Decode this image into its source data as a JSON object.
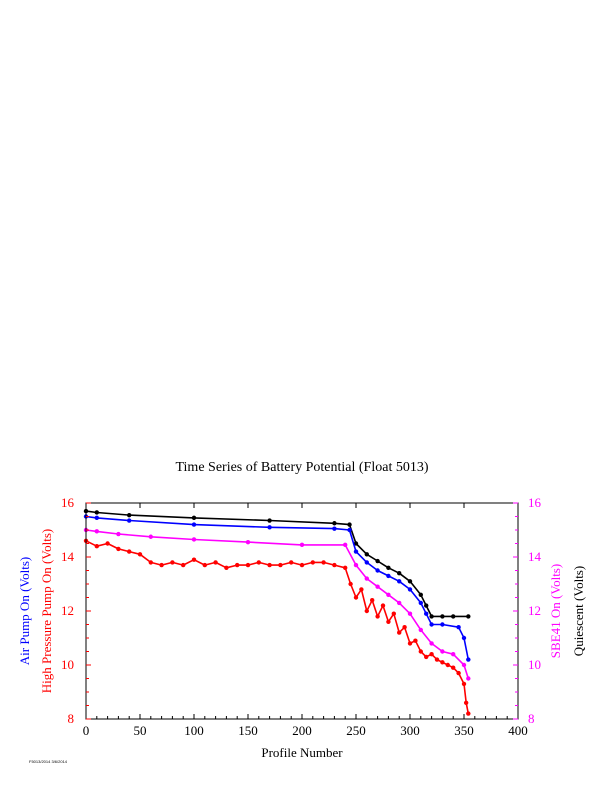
{
  "chart_data": {
    "type": "line",
    "title": "Time Series of Battery Potential (Float 5013)",
    "xlabel": "Profile Number",
    "ylabel_left_outer": "Air Pump On (Volts)",
    "ylabel_left_inner": "High Pressure Pump On (Volts)",
    "ylabel_right_inner": "SBE41 On (Volts)",
    "ylabel_right_outer": "Quiescent (Volts)",
    "xlim": [
      0,
      400
    ],
    "ylim": [
      8,
      16
    ],
    "x_ticks": [
      "0",
      "50",
      "100",
      "150",
      "200",
      "250",
      "300",
      "350",
      "400"
    ],
    "y_ticks_left": [
      "8",
      "10",
      "12",
      "14",
      "16"
    ],
    "y_ticks_right": [
      "8",
      "10",
      "12",
      "14",
      "16"
    ],
    "grid": false,
    "footnote": "F5013/2014 3/6/2014",
    "series": [
      {
        "name": "Quiescent",
        "color": "#000000",
        "x": [
          0,
          10,
          40,
          100,
          170,
          230,
          244,
          250,
          260,
          270,
          280,
          290,
          300,
          310,
          315,
          320,
          330,
          340,
          354
        ],
        "y": [
          15.7,
          15.65,
          15.55,
          15.45,
          15.35,
          15.25,
          15.2,
          14.5,
          14.1,
          13.85,
          13.6,
          13.4,
          13.1,
          12.6,
          12.2,
          11.8,
          11.8,
          11.8,
          11.8
        ]
      },
      {
        "name": "Air Pump On",
        "color": "#0000ff",
        "x": [
          0,
          10,
          40,
          100,
          170,
          230,
          244,
          250,
          260,
          270,
          280,
          290,
          300,
          310,
          315,
          320,
          330,
          345,
          350,
          354
        ],
        "y": [
          15.5,
          15.45,
          15.35,
          15.2,
          15.1,
          15.05,
          15.0,
          14.2,
          13.8,
          13.5,
          13.3,
          13.1,
          12.8,
          12.3,
          11.9,
          11.5,
          11.5,
          11.4,
          11.0,
          10.2
        ]
      },
      {
        "name": "SBE41 On",
        "color": "#ff00ff",
        "x": [
          0,
          10,
          30,
          60,
          100,
          150,
          200,
          240,
          250,
          260,
          270,
          280,
          290,
          300,
          310,
          320,
          330,
          340,
          350,
          354
        ],
        "y": [
          15.0,
          14.95,
          14.85,
          14.75,
          14.65,
          14.55,
          14.45,
          14.45,
          13.7,
          13.2,
          12.9,
          12.6,
          12.3,
          11.9,
          11.3,
          10.8,
          10.5,
          10.4,
          10.0,
          9.5
        ]
      },
      {
        "name": "High Pressure Pump On",
        "color": "#ff0000",
        "x": [
          0,
          10,
          20,
          30,
          40,
          50,
          60,
          70,
          80,
          90,
          100,
          110,
          120,
          130,
          140,
          150,
          160,
          170,
          180,
          190,
          200,
          210,
          220,
          230,
          240,
          245,
          250,
          255,
          260,
          265,
          270,
          275,
          280,
          285,
          290,
          295,
          300,
          305,
          310,
          315,
          320,
          325,
          330,
          335,
          340,
          345,
          350,
          352,
          354
        ],
        "y": [
          14.6,
          14.4,
          14.5,
          14.3,
          14.2,
          14.1,
          13.8,
          13.7,
          13.8,
          13.7,
          13.9,
          13.7,
          13.8,
          13.6,
          13.7,
          13.7,
          13.8,
          13.7,
          13.7,
          13.8,
          13.7,
          13.8,
          13.8,
          13.7,
          13.6,
          13.0,
          12.5,
          12.8,
          12.0,
          12.4,
          11.8,
          12.2,
          11.6,
          11.9,
          11.2,
          11.4,
          10.8,
          10.9,
          10.5,
          10.3,
          10.4,
          10.2,
          10.1,
          10.0,
          9.9,
          9.7,
          9.3,
          8.6,
          8.2
        ]
      }
    ]
  }
}
